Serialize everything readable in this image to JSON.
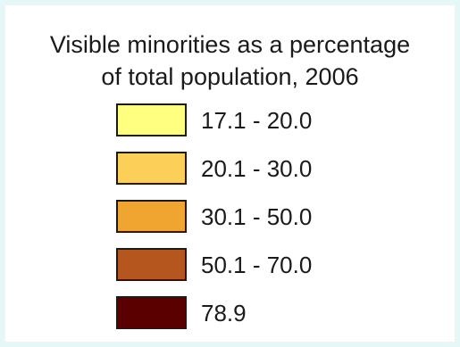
{
  "legend": {
    "title_line1": "Visible minorities as a percentage",
    "title_line2": "of total population, 2006",
    "items": [
      {
        "label": "17.1 - 20.0",
        "color": "#ffff80"
      },
      {
        "label": "20.1 - 30.0",
        "color": "#fcd058"
      },
      {
        "label": "30.1 - 50.0",
        "color": "#f0a530"
      },
      {
        "label": "50.1 - 70.0",
        "color": "#b4561e"
      },
      {
        "label": "78.9",
        "color": "#5a0000"
      }
    ]
  }
}
